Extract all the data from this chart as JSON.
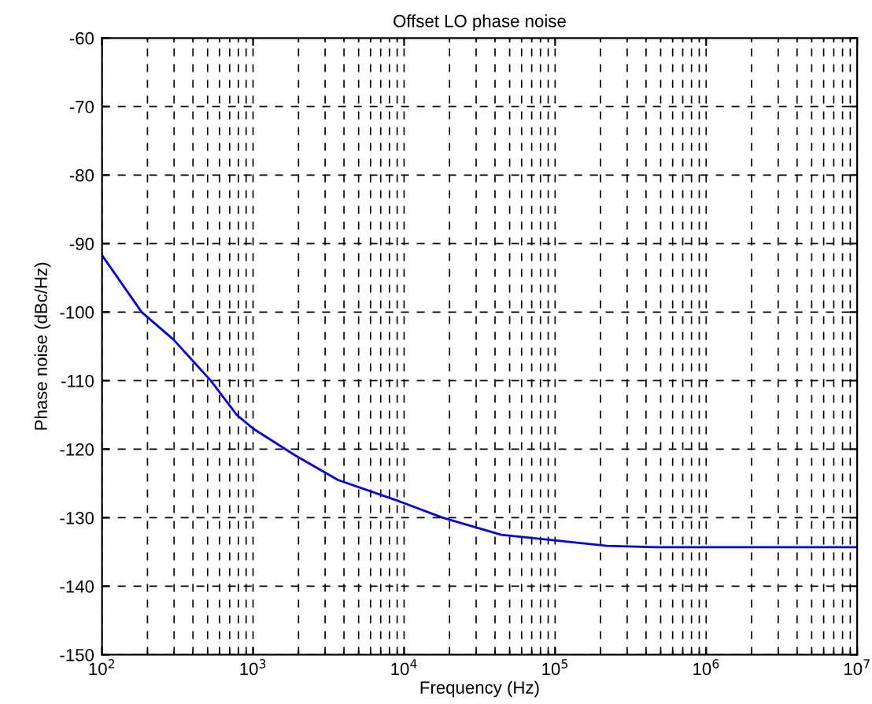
{
  "chart_data": {
    "type": "line",
    "title": "Offset LO phase noise",
    "xlabel": "Frequency (Hz)",
    "ylabel": "Phase noise (dBc/Hz)",
    "log": "x",
    "grid": true,
    "marker": "none",
    "line_style": "solid",
    "xlim": [
      100,
      10000000
    ],
    "ylim": [
      -150,
      -60
    ],
    "xticks": [
      {
        "value": 100,
        "label": "10$^{2}$"
      },
      {
        "value": 1000,
        "label": "10$^{3}$"
      },
      {
        "value": 10000,
        "label": "10$^{4}$"
      },
      {
        "value": 100000,
        "label": "10$^{5}$"
      },
      {
        "value": 1000000,
        "label": "10$^{6}$"
      },
      {
        "value": 10000000,
        "label": "10$^{7}$"
      }
    ],
    "yticks": [
      -150,
      -140,
      -130,
      -120,
      -110,
      -100,
      -90,
      -80,
      -70,
      -60
    ],
    "series": [
      {
        "color": "#0000ff",
        "x": [
          100,
          183,
          297,
          525,
          780,
          1000,
          1900,
          3650,
          9000,
          18000,
          44000,
          220000,
          460000,
          1000000,
          10000000
        ],
        "values": [
          -91.7,
          -100,
          -104,
          -110,
          -115,
          -117,
          -120.9,
          -124.5,
          -127.5,
          -130,
          -132.5,
          -134.1,
          -134.3,
          -134.3,
          -134.3
        ]
      }
    ]
  }
}
